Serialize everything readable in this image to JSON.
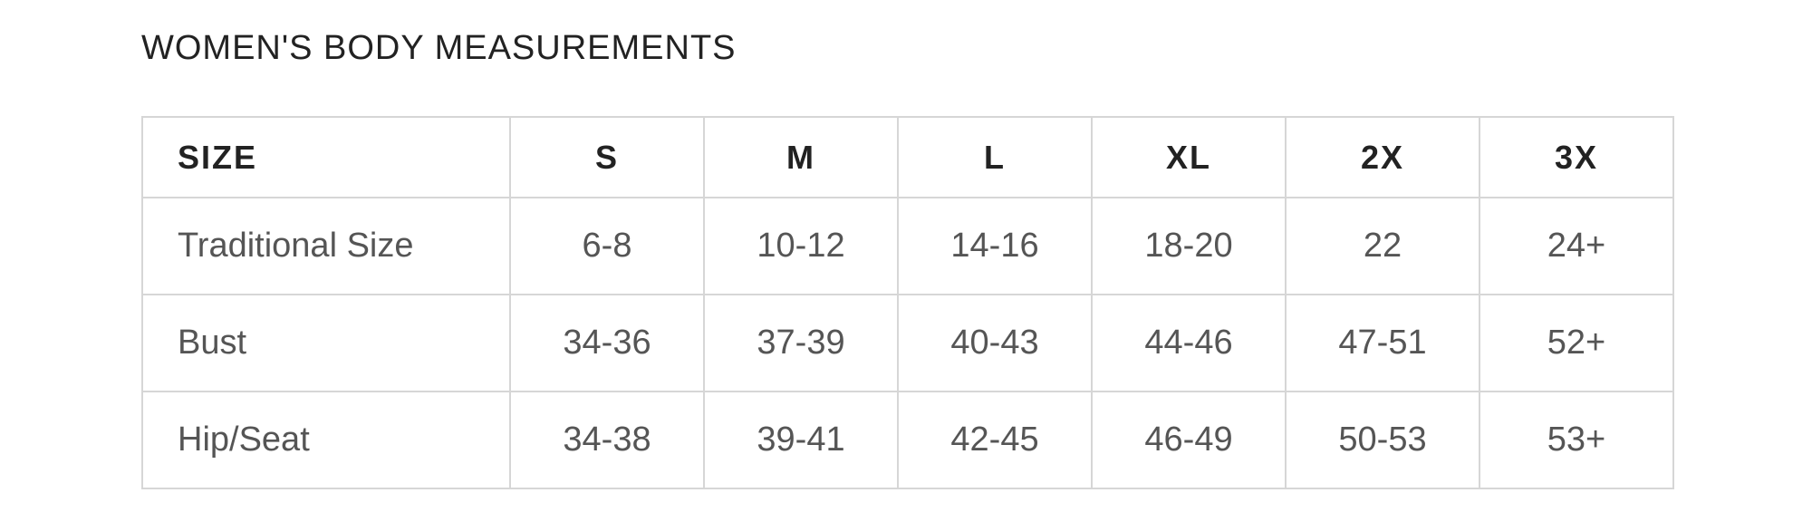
{
  "title": "WOMEN'S BODY MEASUREMENTS",
  "table": {
    "header": [
      "SIZE",
      "S",
      "M",
      "L",
      "XL",
      "2X",
      "3X"
    ],
    "rows": [
      [
        "Traditional Size",
        "6-8",
        "10-12",
        "14-16",
        "18-20",
        "22",
        "24+"
      ],
      [
        "Bust",
        "34-36",
        "37-39",
        "40-43",
        "44-46",
        "47-51",
        "52+"
      ],
      [
        "Hip/Seat",
        "34-38",
        "39-41",
        "42-45",
        "46-49",
        "50-53",
        "53+"
      ]
    ]
  }
}
